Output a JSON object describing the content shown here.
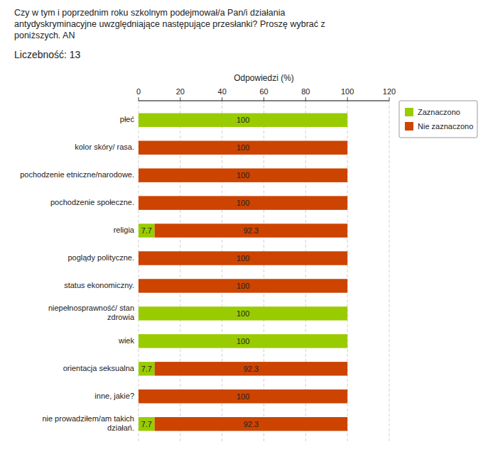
{
  "chart_data": {
    "type": "bar",
    "orientation": "horizontal",
    "stacked": true,
    "title": "Czy w tym i poprzednim roku szkolnym podejmował/a Pan/i działania\nantydyskryminacyjne uwzględniające następujące przesłanki? Proszę wybrać z\nponiższych. AN",
    "subtitle": "Liczebność: 13",
    "x_label": "Odpowiedzi (%)",
    "categories": [
      "płeć",
      "kolor skóry/ rasa.",
      "pochodzenie etniczne/narodowe.",
      "pochodzenie społeczne.",
      "religia",
      "poglądy polityczne.",
      "status ekonomiczny.",
      "niepełnosprawność/ stan\nzdrowia",
      "wiek",
      "orientacja seksualna",
      "inne, jakie?",
      "nie prowadziłem/am takich\ndziałań."
    ],
    "series": [
      {
        "name": "Zaznaczono",
        "color": "#99CC00",
        "values": [
          100,
          0,
          0,
          0,
          7.7,
          0,
          0,
          100,
          100,
          7.7,
          0,
          7.7
        ]
      },
      {
        "name": "Nie zaznaczono",
        "color": "#CC4400",
        "values": [
          0,
          100,
          100,
          100,
          92.3,
          100,
          100,
          0,
          0,
          92.3,
          100,
          92.3
        ]
      }
    ],
    "xlim": [
      0,
      120
    ],
    "xticks": [
      0,
      20,
      40,
      60,
      80,
      100,
      120
    ],
    "grid": true,
    "legend": "upper right",
    "data_labels": true
  }
}
